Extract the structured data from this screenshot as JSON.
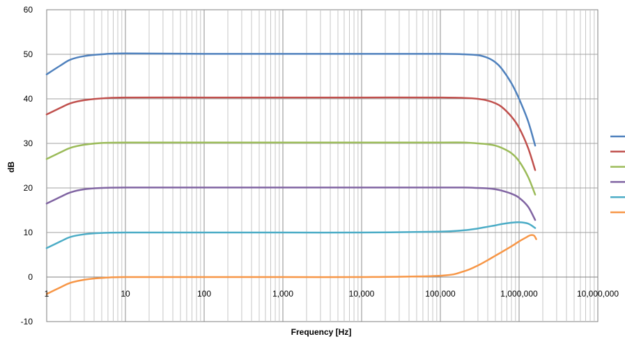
{
  "chart_data": {
    "type": "line",
    "title": "",
    "xlabel": "Frequency [Hz]",
    "ylabel": "dB",
    "x_scale": "log",
    "xlim": [
      1,
      10000000
    ],
    "ylim": [
      -10,
      60
    ],
    "grid": true,
    "legend_position": "right",
    "x_tick_labels": [
      "1",
      "10",
      "100",
      "1,000",
      "10,000",
      "100,000",
      "1,000,000",
      "10,000,000"
    ],
    "y_tick_labels": [
      "-10",
      "0",
      "10",
      "20",
      "30",
      "40",
      "50",
      "60"
    ],
    "series": [
      {
        "color": "#4F81BD",
        "x": [
          1,
          1.5,
          2,
          3,
          5,
          10,
          100,
          1000,
          10000,
          100000,
          200000,
          300000,
          400000,
          500000,
          600000,
          800000,
          1000000,
          1300000,
          1600000
        ],
        "values": [
          45.5,
          47.5,
          48.8,
          49.6,
          50.0,
          50.2,
          50.1,
          50.1,
          50.1,
          50.1,
          50.0,
          49.8,
          49.2,
          48.2,
          46.8,
          43.5,
          40.0,
          35.0,
          29.5
        ]
      },
      {
        "color": "#C0504D",
        "x": [
          1,
          1.5,
          2,
          3,
          5,
          10,
          100,
          1000,
          10000,
          100000,
          200000,
          300000,
          400000,
          500000,
          600000,
          800000,
          1000000,
          1300000,
          1600000
        ],
        "values": [
          36.5,
          38.0,
          39.0,
          39.7,
          40.1,
          40.3,
          40.3,
          40.3,
          40.3,
          40.3,
          40.2,
          40.0,
          39.6,
          39.0,
          38.2,
          36.0,
          33.5,
          29.0,
          24.0
        ]
      },
      {
        "color": "#9BBB59",
        "x": [
          1,
          1.5,
          2,
          3,
          5,
          10,
          100,
          1000,
          10000,
          100000,
          200000,
          300000,
          400000,
          500000,
          600000,
          800000,
          1000000,
          1300000,
          1600000
        ],
        "values": [
          26.5,
          28.0,
          29.0,
          29.7,
          30.1,
          30.2,
          30.2,
          30.2,
          30.2,
          30.2,
          30.2,
          30.0,
          29.8,
          29.5,
          29.0,
          27.8,
          26.0,
          22.5,
          18.5
        ]
      },
      {
        "color": "#8064A2",
        "x": [
          1,
          1.5,
          2,
          3,
          5,
          10,
          100,
          1000,
          10000,
          100000,
          200000,
          300000,
          400000,
          500000,
          600000,
          800000,
          1000000,
          1300000,
          1600000
        ],
        "values": [
          16.5,
          18.0,
          19.0,
          19.7,
          20.0,
          20.1,
          20.1,
          20.1,
          20.1,
          20.1,
          20.1,
          20.0,
          19.9,
          19.7,
          19.4,
          18.7,
          17.8,
          15.8,
          12.8
        ]
      },
      {
        "color": "#4BACC6",
        "x": [
          1,
          1.5,
          2,
          3,
          5,
          10,
          100,
          1000,
          10000,
          100000,
          200000,
          300000,
          400000,
          500000,
          600000,
          800000,
          1000000,
          1300000,
          1600000
        ],
        "values": [
          6.5,
          8.0,
          9.0,
          9.6,
          9.9,
          10.0,
          10.0,
          10.0,
          10.0,
          10.2,
          10.5,
          10.9,
          11.3,
          11.6,
          11.9,
          12.2,
          12.3,
          12.0,
          11.0
        ]
      },
      {
        "color": "#F79646",
        "x": [
          1,
          1.5,
          2,
          3,
          5,
          10,
          100,
          1000,
          10000,
          100000,
          200000,
          300000,
          400000,
          500000,
          600000,
          800000,
          1000000,
          1200000,
          1400000,
          1550000,
          1650000
        ],
        "values": [
          -3.8,
          -2.3,
          -1.3,
          -0.6,
          -0.2,
          0.0,
          0.0,
          0.0,
          0.0,
          0.3,
          1.3,
          2.6,
          3.8,
          4.8,
          5.6,
          6.9,
          8.0,
          8.8,
          9.4,
          9.3,
          8.5
        ]
      }
    ]
  }
}
